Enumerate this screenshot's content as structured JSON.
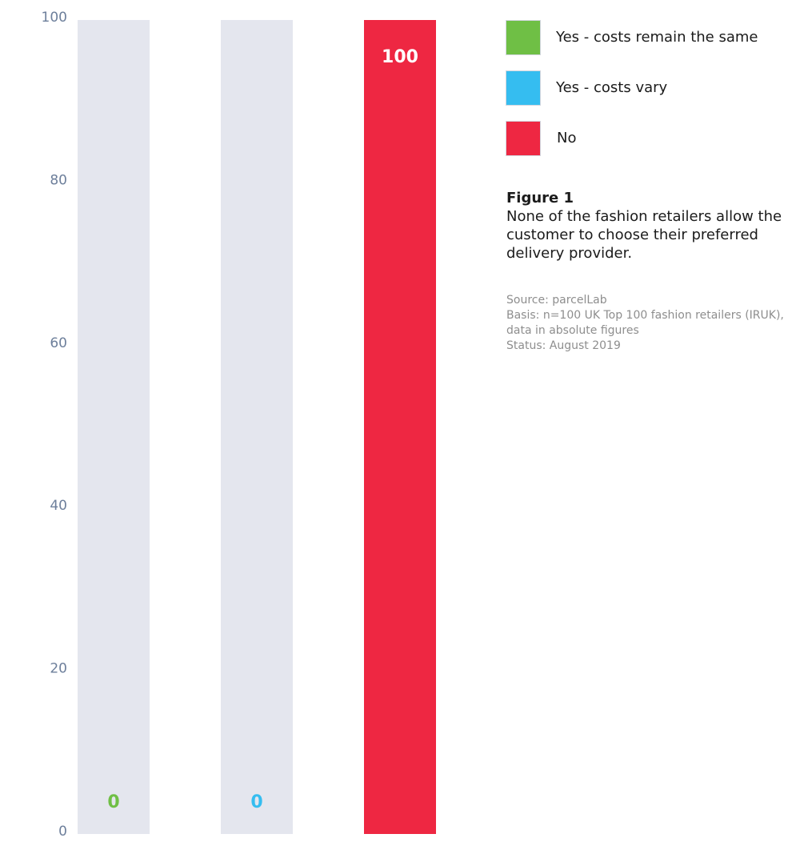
{
  "chart_data": {
    "type": "bar",
    "categories": [
      "Yes - costs remain the same",
      "Yes - costs vary",
      "No"
    ],
    "values": [
      0,
      0,
      100
    ],
    "value_labels": [
      "0",
      "0",
      "100"
    ],
    "colors": [
      "#6fbf45",
      "#35bdf0",
      "#ee2742"
    ],
    "label_colors": [
      "#6fbf45",
      "#35bdf0",
      "#ffffff"
    ],
    "track_color": "#e4e6ee",
    "ylim": [
      0,
      100
    ],
    "yticks": [
      0,
      20,
      40,
      60,
      80,
      100
    ],
    "title": "Figure 1",
    "xlabel": "",
    "ylabel": "",
    "grid": false,
    "legend_position": "top-right"
  },
  "legend": {
    "items": [
      {
        "label": "Yes - costs remain the same",
        "color": "#6fbf45"
      },
      {
        "label": "Yes - costs vary",
        "color": "#35bdf0"
      },
      {
        "label": "No",
        "color": "#ee2742"
      }
    ]
  },
  "caption": {
    "title": "Figure 1",
    "text": "None of the fashion retailers allow the customer to choose their preferred delivery provider."
  },
  "notes": {
    "source": "Source: parcelLab",
    "basis_line1": "Basis: n=100 UK Top 100 fashion retailers (IRUK),",
    "basis_line2": "data in absolute figures",
    "status": "Status: August 2019"
  }
}
